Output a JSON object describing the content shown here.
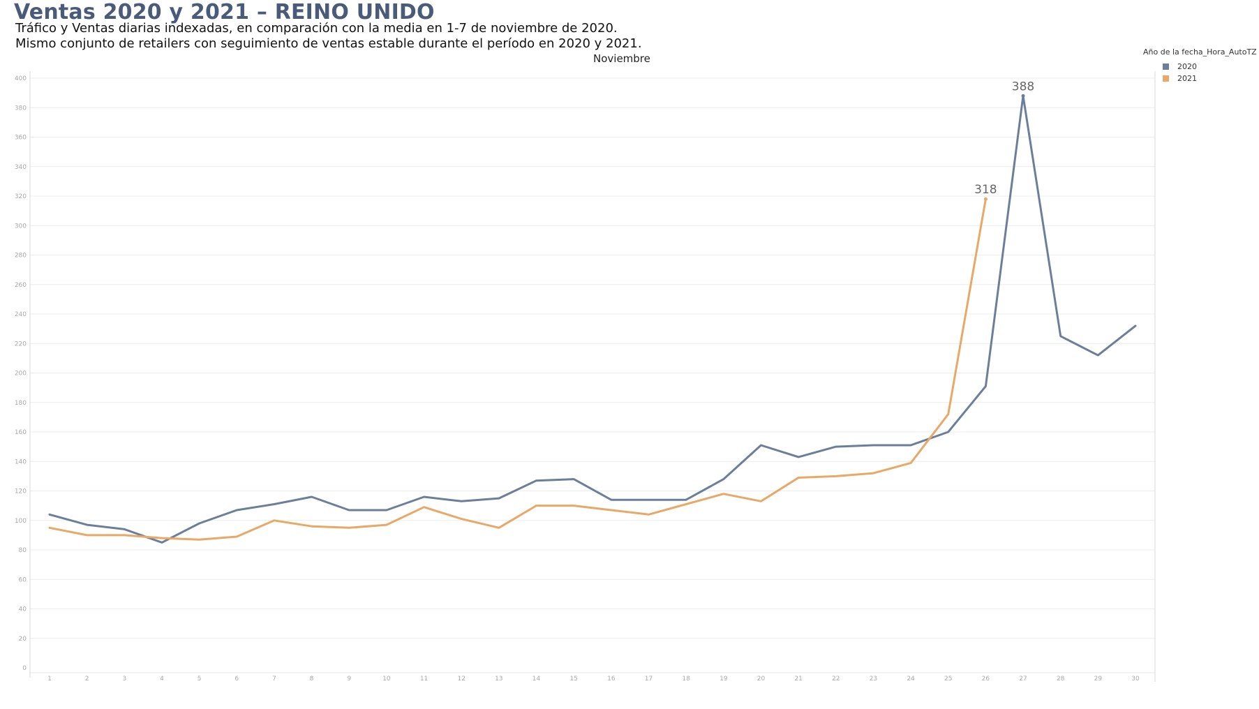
{
  "header": {
    "title": "Ventas 2020 y 2021 – REINO UNIDO",
    "subtitle_line1": "Tráfico y Ventas diarias indexadas, en comparación con la media en 1-7 de noviembre de 2020.",
    "subtitle_line2": "Mismo conjunto de retailers con seguimiento de ventas estable durante el período en 2020 y 2021."
  },
  "legend": {
    "title": "Año de la fecha_Hora_AutoTZ",
    "items": [
      {
        "label": "2020",
        "color": "#6b7f9a"
      },
      {
        "label": "2021",
        "color": "#e8a866"
      }
    ]
  },
  "chart_data": {
    "type": "line",
    "title": "Noviembre",
    "xlabel": "",
    "ylabel": "",
    "x": [
      1,
      2,
      3,
      4,
      5,
      6,
      7,
      8,
      9,
      10,
      11,
      12,
      13,
      14,
      15,
      16,
      17,
      18,
      19,
      20,
      21,
      22,
      23,
      24,
      25,
      26,
      27,
      28,
      29,
      30
    ],
    "ylim": [
      0,
      400
    ],
    "yticks": [
      0,
      20,
      40,
      60,
      80,
      100,
      120,
      140,
      160,
      180,
      200,
      220,
      240,
      260,
      280,
      300,
      320,
      340,
      360,
      380,
      400
    ],
    "grid": true,
    "legend_position": "top-right",
    "series": [
      {
        "name": "2020",
        "color": "#6b7f9a",
        "values": [
          104,
          97,
          94,
          85,
          98,
          107,
          111,
          116,
          107,
          107,
          116,
          113,
          115,
          127,
          128,
          114,
          114,
          114,
          128,
          151,
          143,
          150,
          151,
          151,
          160,
          191,
          388,
          225,
          212,
          232
        ]
      },
      {
        "name": "2021",
        "color": "#e8a866",
        "values": [
          95,
          90,
          90,
          88,
          87,
          89,
          100,
          96,
          95,
          97,
          109,
          101,
          95,
          110,
          110,
          107,
          104,
          111,
          118,
          113,
          129,
          130,
          132,
          139,
          172,
          318,
          null,
          null,
          null,
          null
        ]
      }
    ],
    "annotations": [
      {
        "series": "2020",
        "x": 27,
        "text": "388"
      },
      {
        "series": "2021",
        "x": 26,
        "text": "318"
      }
    ]
  }
}
